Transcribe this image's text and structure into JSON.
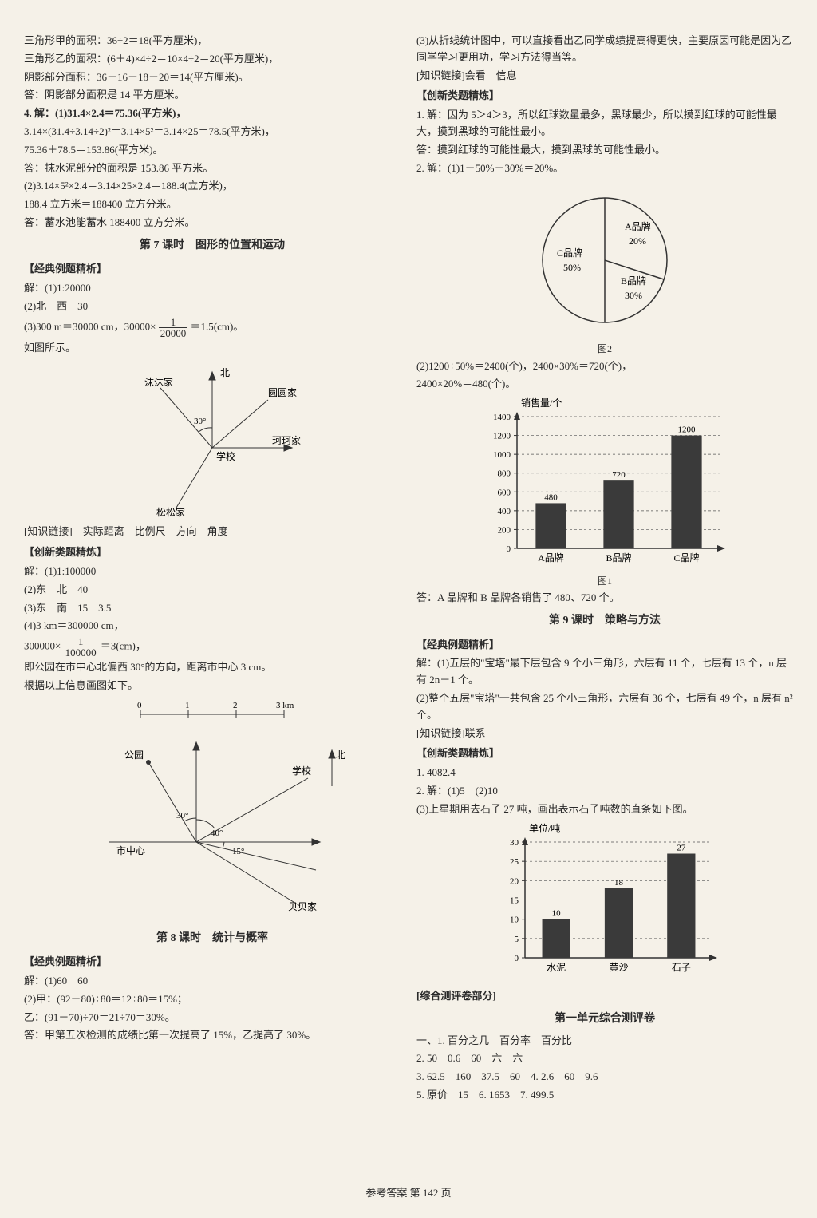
{
  "footer": "参考答案 第 142 页",
  "left": {
    "l1": "三角形甲的面积：36÷2＝18(平方厘米)，",
    "l2": "三角形乙的面积：(6＋4)×4÷2＝10×4÷2＝20(平方厘米)，",
    "l3": "阴影部分面积：36＋16－18－20＝14(平方厘米)。",
    "l4": "答：阴影部分面积是 14 平方厘米。",
    "l5": "4. 解：(1)31.4×2.4＝75.36(平方米)，",
    "l6": "3.14×(31.4÷3.14÷2)²＝3.14×5²＝3.14×25＝78.5(平方米)，",
    "l7": "75.36＋78.5＝153.86(平方米)。",
    "l8": "答：抹水泥部分的面积是 153.86 平方米。",
    "l9": "(2)3.14×5²×2.4＝3.14×25×2.4＝188.4(立方米)，",
    "l10": "188.4 立方米＝188400 立方分米。",
    "l11": "答：蓄水池能蓄水 188400 立方分米。",
    "title7": "第 7 课时　图形的位置和运动",
    "jd1": "【经典例题精析】",
    "l12": "解：(1)1:20000",
    "l13": "(2)北　西　30",
    "l14a": "(3)300 m＝30000 cm，30000×",
    "l14frac_num": "1",
    "l14frac_den": "20000",
    "l14b": "＝1.5(cm)。",
    "l15": "如图所示。",
    "zs1": "[知识链接]　实际距离　比例尺　方向　角度",
    "cx1": "【创新类题精炼】",
    "l16": "解：(1)1:100000",
    "l17": "(2)东　北　40",
    "l18": "(3)东　南　15　3.5",
    "l19": "(4)3 km＝300000 cm，",
    "l20a": "300000×",
    "l20frac_num": "1",
    "l20frac_den": "100000",
    "l20b": "＝3(cm)，",
    "l21": "即公园在市中心北偏西 30°的方向，距离市中心 3 cm。",
    "l22": "根据以上信息画图如下。",
    "title8": "第 8 课时　统计与概率",
    "jd2": "【经典例题精析】",
    "l23": "解：(1)60　60",
    "l24": "(2)甲：(92－80)÷80＝12÷80＝15%；",
    "l25": "乙：(91－70)÷70＝21÷70＝30%。",
    "l26": "答：甲第五次检测的成绩比第一次提高了 15%，乙提高了 30%。",
    "diagram1": {
      "labels": {
        "north": "北",
        "school": "学校",
        "a": "沫沫家",
        "b": "圆圆家",
        "c": "珂珂家",
        "d": "松松家",
        "angle": "30°"
      },
      "lineColor": "#333333"
    },
    "diagram2": {
      "labels": {
        "north": "北",
        "center": "市中心",
        "park": "公园",
        "school": "学校",
        "bb": "贝贝家",
        "ang30": "30°",
        "ang40": "40°",
        "ang15": "15°",
        "s0": "0",
        "s1": "1",
        "s2": "2",
        "s3": "3 km"
      },
      "lineColor": "#333333"
    }
  },
  "right": {
    "l1": "(3)从折线统计图中，可以直接看出乙同学成绩提高得更快，主要原因可能是因为乙同学学习更用功，学习方法得当等。",
    "l2": "[知识链接]会看　信息",
    "cx1": "【创新类题精炼】",
    "l3": "1. 解：因为 5＞4＞3，所以红球数量最多，黑球最少，所以摸到红球的可能性最大，摸到黑球的可能性最小。",
    "l4": "答：摸到红球的可能性最大，摸到黑球的可能性最小。",
    "l5": "2. 解：(1)1－50%－30%＝20%。",
    "pie": {
      "bg": "#f5f1e8",
      "stroke": "#333333",
      "slices": [
        {
          "label": "A品牌",
          "pct": "20%",
          "start": -90,
          "end": -18
        },
        {
          "label": "B品牌",
          "pct": "30%",
          "start": -18,
          "end": 90
        },
        {
          "label": "C品牌",
          "pct": "50%",
          "start": 90,
          "end": 270
        }
      ],
      "caption": "图2"
    },
    "l6": "(2)1200÷50%＝2400(个)，2400×30%＝720(个)，",
    "l7": "2400×20%＝480(个)。",
    "bar1": {
      "ylabel": "销售量/个",
      "ymax": 1400,
      "ystep": 200,
      "yticks": [
        0,
        200,
        400,
        600,
        800,
        1000,
        1200,
        1400
      ],
      "categories": [
        "A品牌",
        "B品牌",
        "C品牌"
      ],
      "values": [
        480,
        720,
        1200
      ],
      "barColor": "#3a3a3a",
      "gridColor": "#555555",
      "axisColor": "#333333",
      "caption": "图1"
    },
    "l8": "答：A 品牌和 B 品牌各销售了 480、720 个。",
    "title9": "第 9 课时　策略与方法",
    "jd": "【经典例题精析】",
    "l9": "解：(1)五层的\"宝塔\"最下层包含 9 个小三角形，六层有 11 个，七层有 13 个，n 层有 2n－1 个。",
    "l10": "(2)整个五层\"宝塔\"一共包含 25 个小三角形，六层有 36 个，七层有 49 个，n 层有 n² 个。",
    "l11": "[知识链接]联系",
    "cx2": "【创新类题精炼】",
    "l12": "1. 4082.4",
    "l13": "2. 解：(1)5　(2)10",
    "l14": "(3)上星期用去石子 27 吨，画出表示石子吨数的直条如下图。",
    "bar2": {
      "ylabel": "单位/吨",
      "ymax": 30,
      "ystep": 5,
      "yticks": [
        0,
        5,
        10,
        15,
        20,
        25,
        30
      ],
      "categories": [
        "水泥",
        "黄沙",
        "石子"
      ],
      "values": [
        10,
        18,
        27
      ],
      "barColor": "#3a3a3a",
      "gridColor": "#555555",
      "axisColor": "#333333"
    },
    "zh": "[综合测评卷部分]",
    "unit1": "第一单元综合测评卷",
    "a1": "一、1. 百分之几　百分率　百分比",
    "a2": "2. 50　0.6　60　六　六",
    "a3": "3. 62.5　160　37.5　60　4. 2.6　60　9.6",
    "a4": "5. 原价　15　6. 1653　7. 499.5"
  }
}
